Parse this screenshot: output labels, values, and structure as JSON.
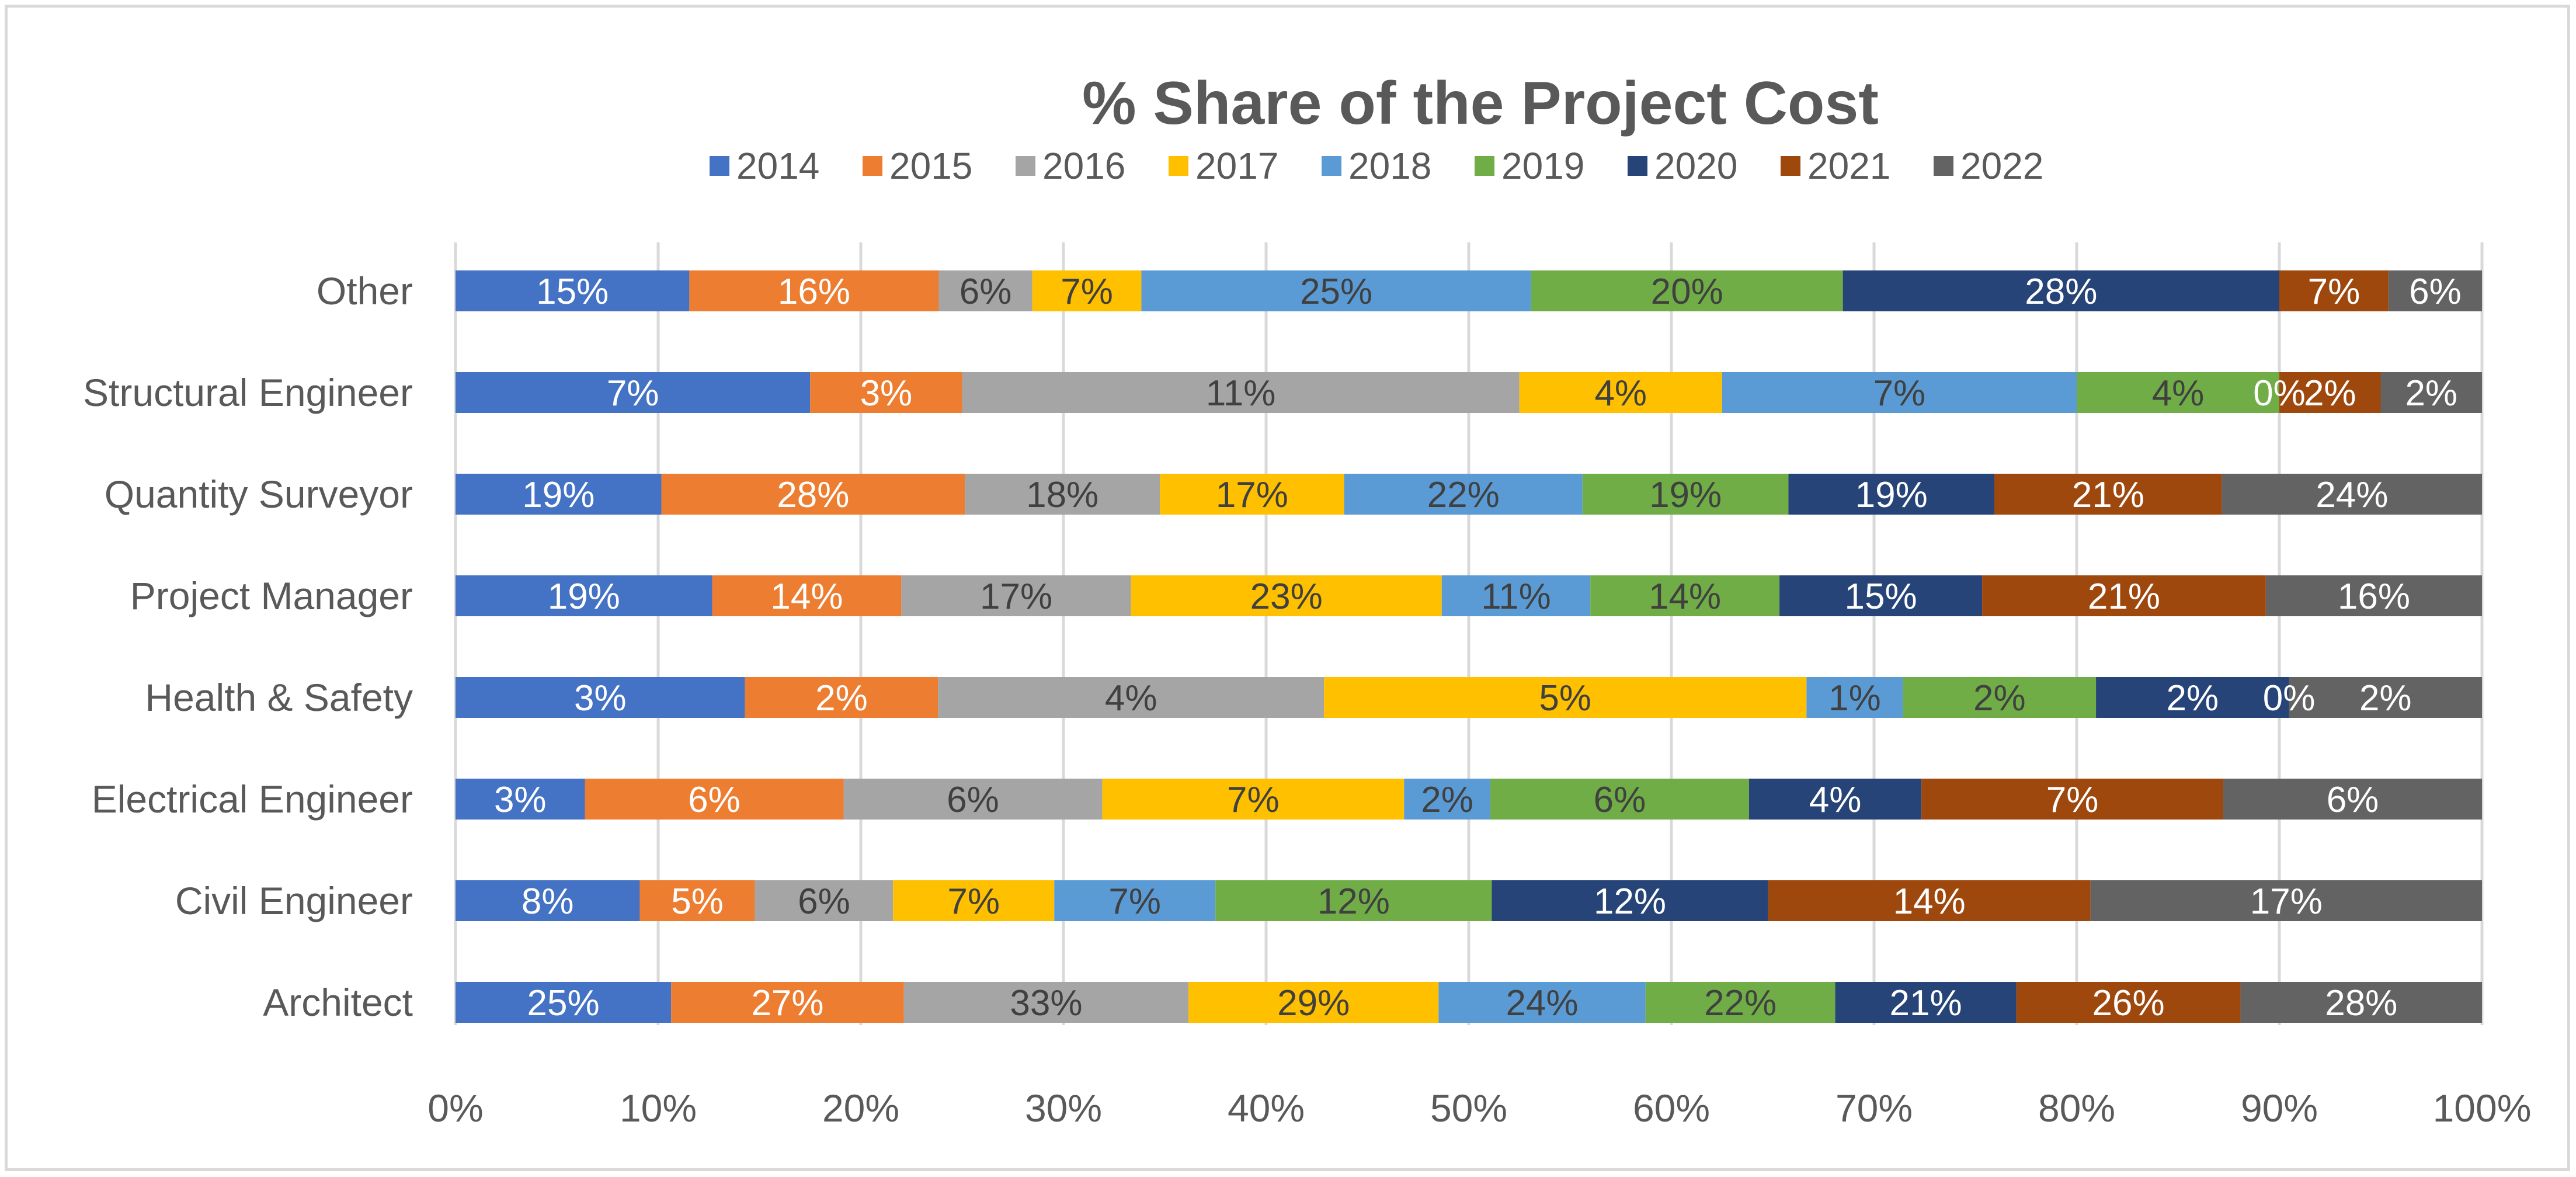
{
  "chart_data": {
    "type": "bar",
    "orientation": "horizontal",
    "stacked": "percent",
    "title": "% Share of the Project Cost",
    "categories": [
      "Architect",
      "Civil Engineer",
      "Electrical Engineer",
      "Health & Safety",
      "Project Manager",
      "Quantity Surveyor",
      "Structural Engineer",
      "Other"
    ],
    "series": [
      {
        "name": "2014",
        "color": "#4472C4",
        "label_color": "#ffffff",
        "values": [
          25,
          8,
          3,
          3,
          19,
          19,
          7,
          15
        ]
      },
      {
        "name": "2015",
        "color": "#ED7D31",
        "label_color": "#ffffff",
        "values": [
          27,
          5,
          6,
          2,
          14,
          28,
          3,
          16
        ]
      },
      {
        "name": "2016",
        "color": "#A5A5A5",
        "label_color": "#404040",
        "values": [
          33,
          6,
          6,
          4,
          17,
          18,
          11,
          6
        ]
      },
      {
        "name": "2017",
        "color": "#FFC000",
        "label_color": "#404040",
        "values": [
          29,
          7,
          7,
          5,
          23,
          17,
          4,
          7
        ]
      },
      {
        "name": "2018",
        "color": "#5B9BD5",
        "label_color": "#404040",
        "values": [
          24,
          7,
          2,
          1,
          11,
          22,
          7,
          25
        ]
      },
      {
        "name": "2019",
        "color": "#70AD47",
        "label_color": "#404040",
        "values": [
          22,
          12,
          6,
          2,
          14,
          19,
          4,
          20
        ]
      },
      {
        "name": "2020",
        "color": "#264478",
        "label_color": "#ffffff",
        "values": [
          21,
          12,
          4,
          2,
          15,
          19,
          0,
          28
        ]
      },
      {
        "name": "2021",
        "color": "#9E480E",
        "label_color": "#ffffff",
        "values": [
          26,
          14,
          7,
          0,
          21,
          21,
          2,
          7
        ]
      },
      {
        "name": "2022",
        "color": "#636363",
        "label_color": "#ffffff",
        "values": [
          28,
          17,
          6,
          2,
          16,
          24,
          2,
          6
        ]
      }
    ],
    "x_ticks": [
      "0%",
      "10%",
      "20%",
      "30%",
      "40%",
      "50%",
      "60%",
      "70%",
      "80%",
      "90%",
      "100%"
    ],
    "xlim": [
      0,
      100
    ],
    "legend_position": "top",
    "grid": true
  }
}
